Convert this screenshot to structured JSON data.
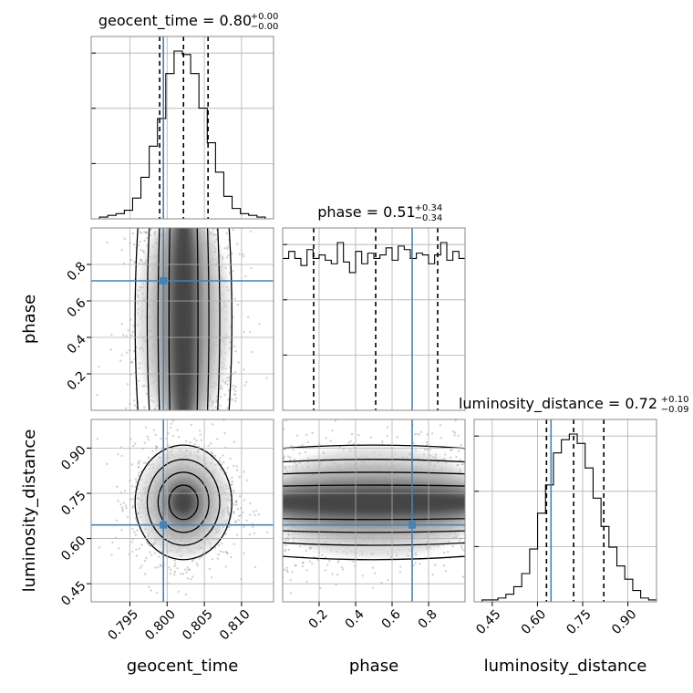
{
  "colors": {
    "truth": "#4682b4",
    "hist": "#000000",
    "grid": "#b0b0b0",
    "density": "#000000"
  },
  "chart_data": {
    "type": "corner",
    "parameters": [
      "geocent_time",
      "phase",
      "luminosity_distance"
    ],
    "truths": {
      "geocent_time": 0.7995,
      "phase": 0.71,
      "luminosity_distance": 0.645
    },
    "titles": [
      {
        "param": "geocent_time",
        "text": "geocent_time = 0.80",
        "plus": "+0.00",
        "minus": "−0.00"
      },
      {
        "param": "phase",
        "text": "phase = 0.51",
        "plus": "+0.34",
        "minus": "−0.34"
      },
      {
        "param": "luminosity_distance",
        "text": "luminosity_distance = 0.72",
        "plus": "+0.10",
        "minus": "−0.09"
      }
    ],
    "axes": {
      "geocent_time": {
        "label": "geocent_time",
        "range": [
          0.7898,
          0.8143
        ],
        "ticks": [
          0.795,
          0.8,
          0.805,
          0.81
        ],
        "tick_labels": [
          "0.795",
          "0.800",
          "0.805",
          "0.810"
        ]
      },
      "phase": {
        "label": "phase",
        "range": [
          0.0,
          1.0
        ],
        "ticks": [
          0.2,
          0.4,
          0.6,
          0.8
        ],
        "tick_labels": [
          "0.2",
          "0.4",
          "0.6",
          "0.8"
        ]
      },
      "luminosity_distance": {
        "label": "luminosity_distance",
        "range": [
          0.39,
          0.995
        ],
        "ticks": [
          0.45,
          0.6,
          0.75,
          0.9
        ],
        "tick_labels": [
          "0.45",
          "0.60",
          "0.75",
          "0.90"
        ]
      }
    },
    "quantiles": {
      "geocent_time": [
        0.799,
        0.8022,
        0.8055
      ],
      "phase": [
        0.17,
        0.51,
        0.85
      ],
      "luminosity_distance": [
        0.63,
        0.72,
        0.82
      ]
    },
    "histograms": {
      "geocent_time": {
        "edges_range": [
          0.7898,
          0.8143
        ],
        "counts": [
          0,
          1,
          2,
          3,
          5,
          12,
          24,
          42,
          58,
          84,
          97,
          95,
          84,
          64,
          44,
          27,
          13,
          6,
          3,
          2,
          1,
          0
        ]
      },
      "phase": {
        "edges_range": [
          0.0,
          1.0
        ],
        "counts": [
          86,
          90,
          86,
          82,
          91,
          86,
          88,
          85,
          83,
          95,
          84,
          78,
          90,
          83,
          89,
          86,
          88,
          92,
          85,
          93,
          91,
          86,
          89,
          88,
          83,
          88,
          95,
          85,
          90,
          86
        ]
      },
      "luminosity_distance": {
        "edges_range": [
          0.39,
          0.995
        ],
        "counts": [
          0,
          1,
          1,
          2,
          4,
          8,
          15,
          28,
          47,
          62,
          79,
          86,
          89,
          84,
          71,
          55,
          40,
          29,
          19,
          12,
          6,
          2,
          1
        ]
      }
    },
    "grid": true,
    "grid_lines": {
      "geocent_time": [
        0.795,
        0.8,
        0.805,
        0.81
      ],
      "phase": [
        0.2,
        0.4,
        0.6,
        0.8
      ],
      "luminosity_distance": [
        0.45,
        0.6,
        0.75,
        0.9
      ]
    }
  }
}
